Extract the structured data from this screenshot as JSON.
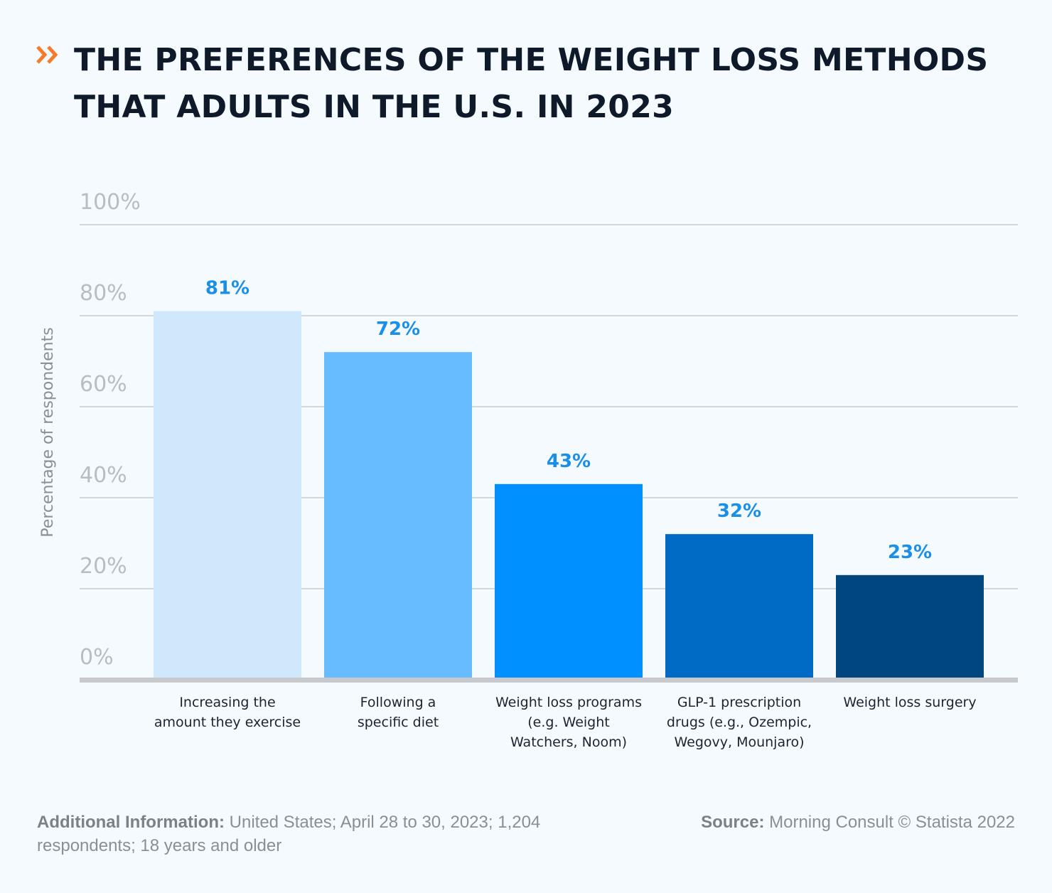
{
  "title": "THE PREFERENCES OF THE WEIGHT LOSS METHODS THAT ADULTS IN THE U.S. IN 2023",
  "chart_data": {
    "type": "bar",
    "categories": [
      [
        "Increasing the",
        "amount they exercise"
      ],
      [
        "Following a",
        "specific diet"
      ],
      [
        "Weight loss programs",
        "(e.g. Weight",
        "Watchers, Noom)"
      ],
      [
        "GLP-1 prescription",
        "drugs (e.g., Ozempic,",
        "Wegovy, Mounjaro)"
      ],
      [
        "Weight loss surgery"
      ]
    ],
    "values": [
      81,
      72,
      43,
      32,
      23
    ],
    "value_labels": [
      "81%",
      "72%",
      "43%",
      "32%",
      "23%"
    ],
    "bar_colors": [
      "#cfe8fc",
      "#66bcff",
      "#0090ff",
      "#006bc4",
      "#00467f"
    ],
    "label_color": "#1a8fe8",
    "ylabel": "Percentage of respondents",
    "ylim": [
      0,
      100
    ],
    "yticks": [
      0,
      20,
      40,
      60,
      80,
      100
    ],
    "ytick_labels": [
      "0%",
      "20%",
      "40%",
      "60%",
      "80%",
      "100%"
    ],
    "grid": true
  },
  "footer": {
    "additional_label": "Additional Information:",
    "additional_text": " United States; April 28 to 30, 2023; 1,204 respondents; 18 years and older",
    "source_label": "Source:",
    "source_text": " Morning Consult © Statista 2022"
  }
}
